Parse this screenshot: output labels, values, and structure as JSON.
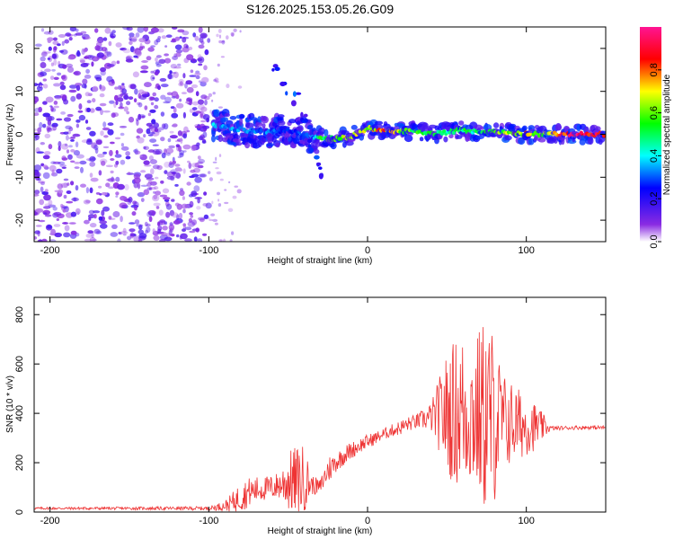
{
  "chart_data": [
    {
      "type": "heatmap",
      "title": "S126.2025.153.05.26.G09",
      "xlabel": "Height of straight line (km)",
      "ylabel": "Frequency (Hz)",
      "xlim": [
        -210,
        150
      ],
      "ylim": [
        -25,
        25
      ],
      "x_ticks": [
        -200,
        -100,
        0,
        100
      ],
      "y_ticks": [
        -20,
        -10,
        0,
        10,
        20
      ],
      "colorbar": {
        "label": "Normalized spectral amplitude",
        "range": [
          0,
          1
        ],
        "ticks": [
          "0.0",
          "0.2",
          "0.4",
          "0.6",
          "0.8"
        ],
        "colors": [
          "#ffffff",
          "#8a2be2",
          "#0000ff",
          "#00ffff",
          "#00ff00",
          "#ffff00",
          "#ff0000",
          "#ff1493"
        ]
      },
      "ridge": {
        "x": [
          -95,
          -80,
          -65,
          -50,
          -40,
          -30,
          -20,
          -10,
          0,
          10,
          20,
          30,
          40,
          50,
          60,
          70,
          80,
          90,
          100,
          110,
          120,
          130,
          140,
          150
        ],
        "freq": [
          2,
          1,
          0.5,
          1,
          0,
          -1,
          -1,
          -0.5,
          1.5,
          1,
          0.5,
          1,
          0,
          0.5,
          1,
          0.5,
          0.5,
          0.5,
          0,
          0,
          0,
          0,
          0,
          0
        ],
        "amplitude": [
          0.4,
          0.35,
          0.35,
          0.3,
          0.3,
          0.55,
          0.7,
          0.75,
          0.7,
          0.85,
          0.7,
          0.6,
          0.55,
          0.5,
          0.55,
          0.5,
          0.6,
          0.75,
          0.8,
          0.7,
          0.9,
          1.0,
          1.0,
          0.9
        ]
      }
    },
    {
      "type": "line",
      "xlabel": "Height of straight line (km)",
      "ylabel": "SNR (10 * v/v)",
      "xlim": [
        -210,
        150
      ],
      "ylim": [
        0,
        870
      ],
      "x_ticks": [
        -200,
        -100,
        0,
        100
      ],
      "y_ticks": [
        0,
        200,
        400,
        600,
        800
      ],
      "line_color": "#ee3333",
      "series": [
        {
          "x": [
            -210,
            -150,
            -100,
            -90,
            -85,
            -80,
            -75,
            -70,
            -65,
            -60,
            -55,
            -50,
            -45,
            -40,
            -35,
            -30,
            -25,
            -20,
            -15,
            -10,
            -5,
            0,
            5,
            10,
            15,
            20,
            25,
            30,
            35,
            40,
            45,
            50,
            55,
            60,
            65,
            70,
            75,
            80,
            85,
            90,
            95,
            100,
            105,
            110,
            115,
            120,
            130,
            140,
            150
          ],
          "y": [
            15,
            15,
            15,
            25,
            40,
            60,
            80,
            90,
            95,
            100,
            110,
            125,
            120,
            135,
            110,
            100,
            170,
            200,
            230,
            250,
            270,
            285,
            300,
            315,
            330,
            340,
            355,
            365,
            375,
            385,
            395,
            400,
            405,
            410,
            400,
            395,
            390,
            380,
            370,
            360,
            355,
            350,
            348,
            345,
            340,
            340,
            342,
            343,
            342
          ],
          "spread": [
            5,
            6,
            8,
            20,
            40,
            60,
            60,
            55,
            50,
            50,
            60,
            120,
            150,
            140,
            40,
            30,
            60,
            40,
            40,
            35,
            30,
            30,
            25,
            25,
            25,
            30,
            30,
            30,
            40,
            60,
            150,
            250,
            300,
            320,
            300,
            350,
            420,
            350,
            200,
            180,
            150,
            120,
            100,
            60,
            10,
            8,
            8,
            8,
            8
          ]
        }
      ]
    }
  ]
}
